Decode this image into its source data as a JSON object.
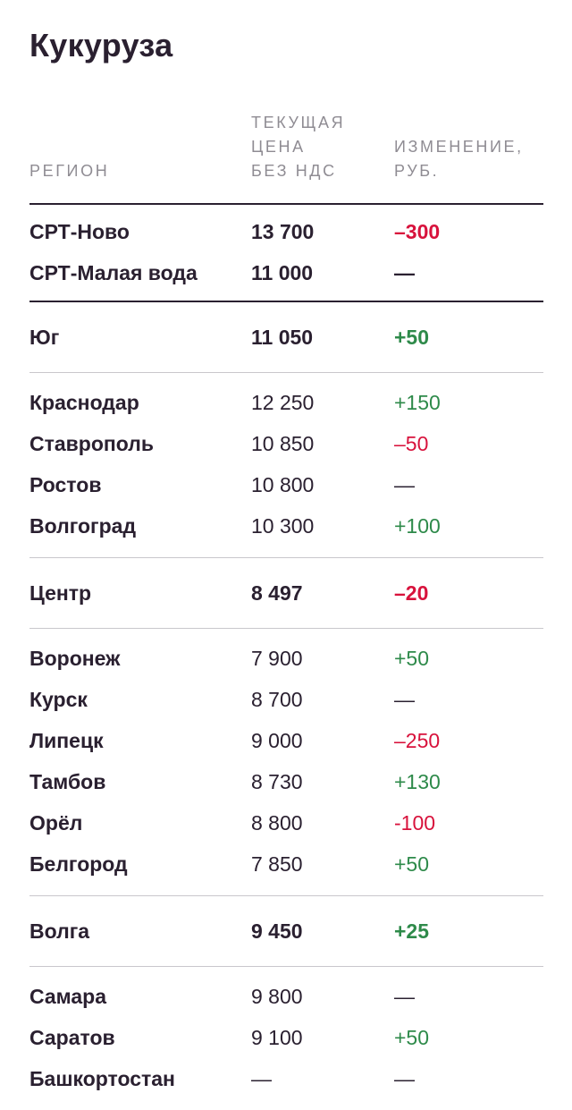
{
  "title": "Кукуруза",
  "colors": {
    "positive": "#2e8a4a",
    "negative": "#d8123c",
    "text": "#2a2030",
    "header": "#8f8c93"
  },
  "columns": {
    "region": "Регион",
    "price": "Текущая\nцена\nбез НДС",
    "change": "Изменение,\nруб."
  },
  "groups": [
    {
      "rows": [
        {
          "region": "СРТ-Ново",
          "price": "13 700",
          "change": "–300",
          "trend": "neg",
          "bold": true
        },
        {
          "region": "СРТ-Малая вода",
          "price": "11 000",
          "change": "—",
          "trend": "neu",
          "bold": true
        }
      ]
    },
    {
      "rows": [
        {
          "region": "Юг",
          "price": "11 050",
          "change": "+50",
          "trend": "pos",
          "bold": true
        }
      ]
    },
    {
      "rows": [
        {
          "region": "Краснодар",
          "price": "12 250",
          "change": "+150",
          "trend": "pos",
          "bold": false
        },
        {
          "region": "Ставрополь",
          "price": "10 850",
          "change": "–50",
          "trend": "neg",
          "bold": false
        },
        {
          "region": "Ростов",
          "price": "10 800",
          "change": "—",
          "trend": "neu",
          "bold": false
        },
        {
          "region": "Волгоград",
          "price": "10 300",
          "change": "+100",
          "trend": "pos",
          "bold": false
        }
      ]
    },
    {
      "rows": [
        {
          "region": "Центр",
          "price": "8 497",
          "change": "–20",
          "trend": "neg",
          "bold": true
        }
      ]
    },
    {
      "rows": [
        {
          "region": "Воронеж",
          "price": "7 900",
          "change": "+50",
          "trend": "pos",
          "bold": false
        },
        {
          "region": "Курск",
          "price": "8 700",
          "change": "—",
          "trend": "neu",
          "bold": false
        },
        {
          "region": "Липецк",
          "price": "9 000",
          "change": "–250",
          "trend": "neg",
          "bold": false
        },
        {
          "region": "Тамбов",
          "price": "8 730",
          "change": "+130",
          "trend": "pos",
          "bold": false
        },
        {
          "region": "Орёл",
          "price": "8 800",
          "change": "-100",
          "trend": "neg",
          "bold": false
        },
        {
          "region": "Белгород",
          "price": "7 850",
          "change": "+50",
          "trend": "pos",
          "bold": false
        }
      ]
    },
    {
      "rows": [
        {
          "region": "Волга",
          "price": "9 450",
          "change": "+25",
          "trend": "pos",
          "bold": true
        }
      ]
    },
    {
      "rows": [
        {
          "region": "Самара",
          "price": "9 800",
          "change": "—",
          "trend": "neu",
          "bold": false
        },
        {
          "region": "Саратов",
          "price": "9 100",
          "change": "+50",
          "trend": "pos",
          "bold": false
        },
        {
          "region": "Башкортостан",
          "price": "—",
          "change": "—",
          "trend": "neu",
          "bold": false
        }
      ]
    }
  ]
}
